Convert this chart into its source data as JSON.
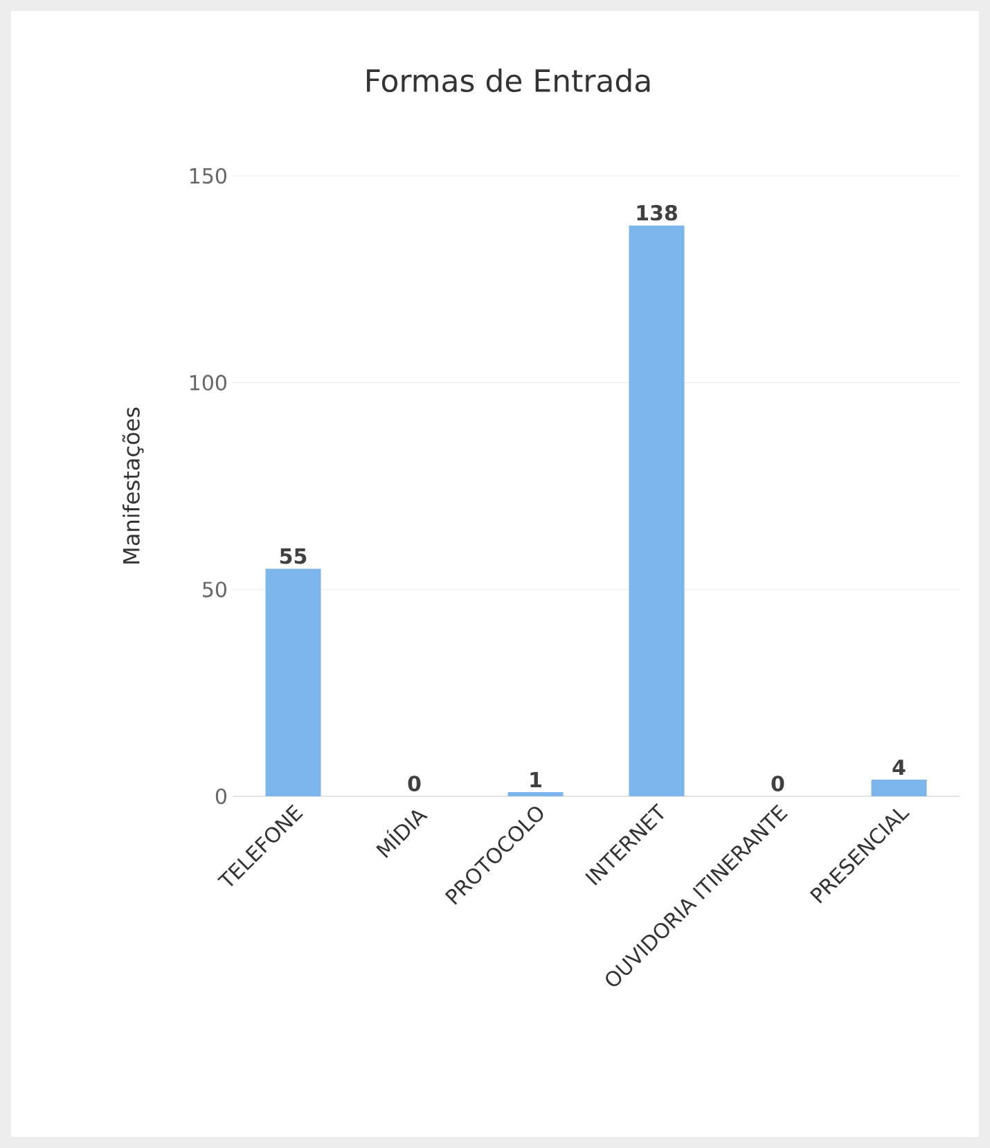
{
  "chart_data": {
    "type": "bar",
    "title": "Formas de Entrada",
    "ylabel": "Manifestações",
    "categories": [
      "TELEFONE",
      "MÍDIA",
      "PROTOCOLO",
      "INTERNET",
      "OUVIDORIA ITINERANTE",
      "PRESENCIAL"
    ],
    "values": [
      55,
      0,
      1,
      138,
      0,
      4
    ],
    "color": "#7cb5ec",
    "ylim": [
      0,
      150
    ],
    "yticks": [
      0,
      50,
      100,
      150
    ],
    "grid": "y",
    "data_labels": true
  }
}
